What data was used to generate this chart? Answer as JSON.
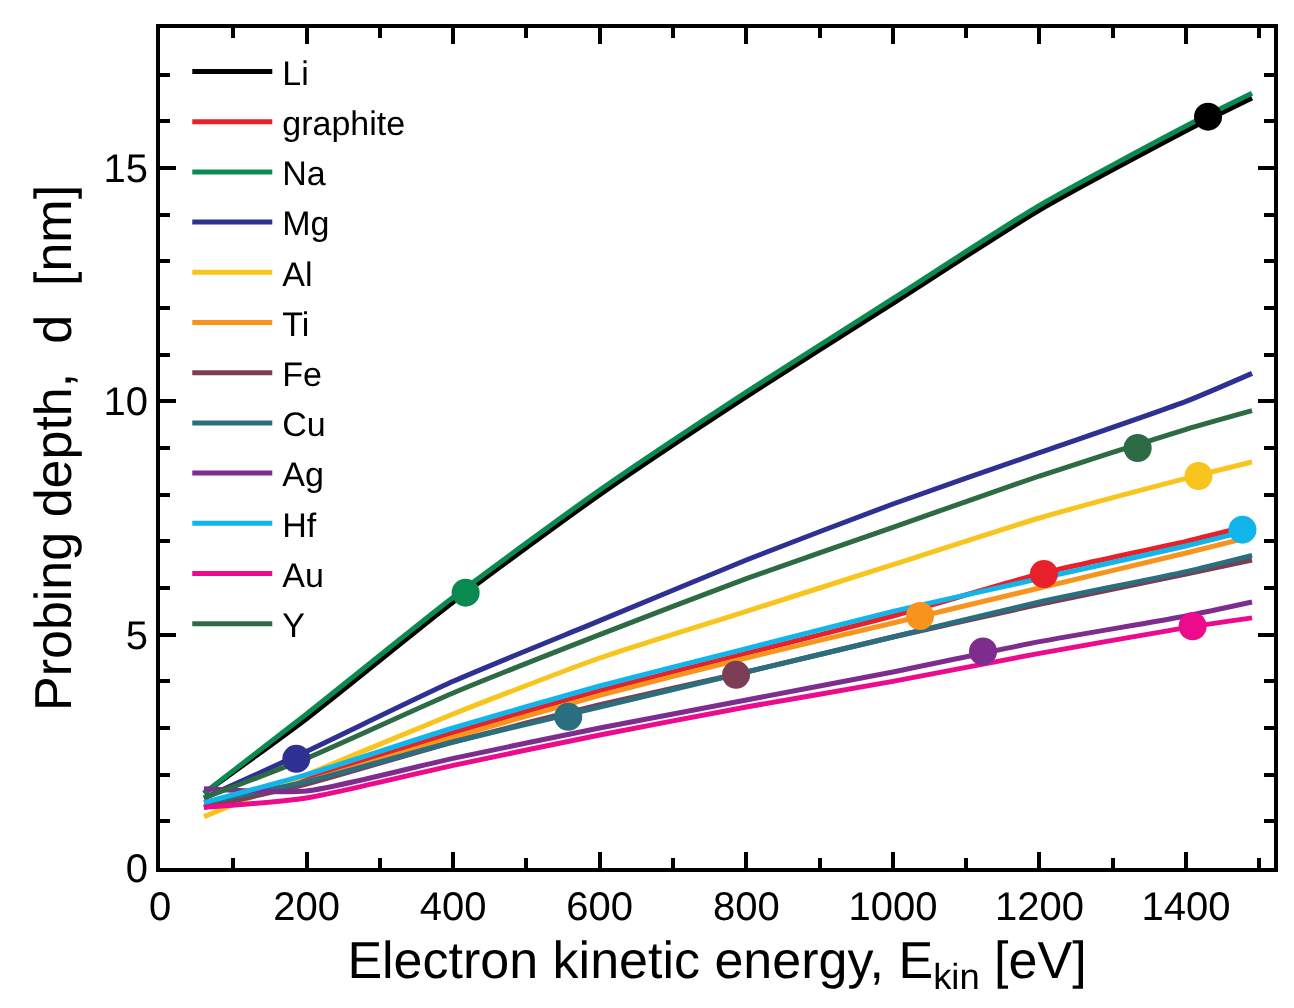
{
  "chart_data": {
    "type": "line",
    "xlabel": "Electron kinetic energy, E$_{kin}$ [eV]",
    "ylabel": "Probing depth,  d  [nm]",
    "x": [
      60,
      200,
      400,
      600,
      800,
      1000,
      1200,
      1400,
      1490
    ],
    "xlim": [
      0,
      1520
    ],
    "xticks": [
      0,
      200,
      400,
      600,
      800,
      1000,
      1200,
      1400
    ],
    "ylim": [
      0,
      18
    ],
    "yticks": [
      0,
      5,
      10,
      15
    ],
    "legend": "top left",
    "line_style": "solid",
    "series": [
      {
        "name": "Li",
        "color": "#000000",
        "values": [
          1.6,
          3.2,
          5.7,
          8.0,
          10.1,
          12.1,
          14.1,
          15.8,
          16.5
        ]
      },
      {
        "name": "graphite",
        "color": "#e8202a",
        "values": [
          1.3,
          1.9,
          2.9,
          3.8,
          4.6,
          5.4,
          6.3,
          7.0,
          7.35
        ]
      },
      {
        "name": "Na",
        "color": "#0a8a50",
        "values": [
          1.6,
          3.3,
          5.8,
          8.1,
          10.2,
          12.2,
          14.2,
          15.9,
          16.6
        ]
      },
      {
        "name": "Mg",
        "color": "#2e3192",
        "values": [
          1.5,
          2.5,
          4.0,
          5.3,
          6.6,
          7.8,
          8.9,
          10.0,
          10.6
        ]
      },
      {
        "name": "Al",
        "color": "#f7c51e",
        "values": [
          1.1,
          2.0,
          3.3,
          4.5,
          5.5,
          6.5,
          7.5,
          8.35,
          8.7
        ]
      },
      {
        "name": "Ti",
        "color": "#f7941d",
        "values": [
          1.3,
          1.85,
          2.8,
          3.7,
          4.5,
          5.25,
          6.0,
          6.75,
          7.1
        ]
      },
      {
        "name": "Fe",
        "color": "#7b3f55",
        "values": [
          1.3,
          1.8,
          2.7,
          3.5,
          4.2,
          4.95,
          5.65,
          6.3,
          6.6
        ]
      },
      {
        "name": "Cu",
        "color": "#2a6e7f",
        "values": [
          1.4,
          1.85,
          2.7,
          3.45,
          4.2,
          4.95,
          5.7,
          6.35,
          6.7
        ]
      },
      {
        "name": "Ag",
        "color": "#7e2d8e",
        "values": [
          1.7,
          1.65,
          2.35,
          3.0,
          3.6,
          4.2,
          4.85,
          5.4,
          5.7
        ]
      },
      {
        "name": "Hf",
        "color": "#12b5ea",
        "values": [
          1.4,
          2.0,
          3.0,
          3.9,
          4.7,
          5.5,
          6.2,
          6.9,
          7.25
        ]
      },
      {
        "name": "Au",
        "color": "#ec0b8d",
        "values": [
          1.3,
          1.5,
          2.2,
          2.85,
          3.45,
          4.0,
          4.6,
          5.15,
          5.36
        ]
      },
      {
        "name": "Y",
        "color": "#2d6b45",
        "values": [
          1.5,
          2.35,
          3.75,
          5.0,
          6.2,
          7.3,
          8.4,
          9.4,
          9.8
        ]
      },
      {
        "type": "scatter",
        "marker": "circle",
        "color": "#000000",
        "x": [
          1430
        ],
        "values": [
          16.1
        ]
      },
      {
        "type": "scatter",
        "marker": "circle",
        "color": "#e8202a",
        "x": [
          1206
        ],
        "values": [
          6.3
        ]
      },
      {
        "type": "scatter",
        "marker": "circle",
        "color": "#0a8a50",
        "x": [
          417
        ],
        "values": [
          5.9
        ]
      },
      {
        "type": "scatter",
        "marker": "circle",
        "color": "#2e3192",
        "x": [
          186
        ],
        "values": [
          2.34
        ]
      },
      {
        "type": "scatter",
        "marker": "circle",
        "color": "#f7c51e",
        "x": [
          1417
        ],
        "values": [
          8.4
        ]
      },
      {
        "type": "scatter",
        "marker": "circle",
        "color": "#f7941d",
        "x": [
          1037
        ],
        "values": [
          5.4
        ]
      },
      {
        "type": "scatter",
        "marker": "circle",
        "color": "#7b3f55",
        "x": [
          786
        ],
        "values": [
          4.14
        ]
      },
      {
        "type": "scatter",
        "marker": "circle",
        "color": "#2a6e7f",
        "x": [
          557
        ],
        "values": [
          3.24
        ]
      },
      {
        "type": "scatter",
        "marker": "circle",
        "color": "#7e2d8e",
        "x": [
          1123
        ],
        "values": [
          4.64
        ]
      },
      {
        "type": "scatter",
        "marker": "circle",
        "color": "#12b5ea",
        "x": [
          1477
        ],
        "values": [
          7.25
        ]
      },
      {
        "type": "scatter",
        "marker": "circle",
        "color": "#ec0b8d",
        "x": [
          1409
        ],
        "values": [
          5.18
        ]
      },
      {
        "type": "scatter",
        "marker": "circle",
        "color": "#2d6b45",
        "x": [
          1334
        ],
        "values": [
          9.0
        ]
      }
    ]
  }
}
